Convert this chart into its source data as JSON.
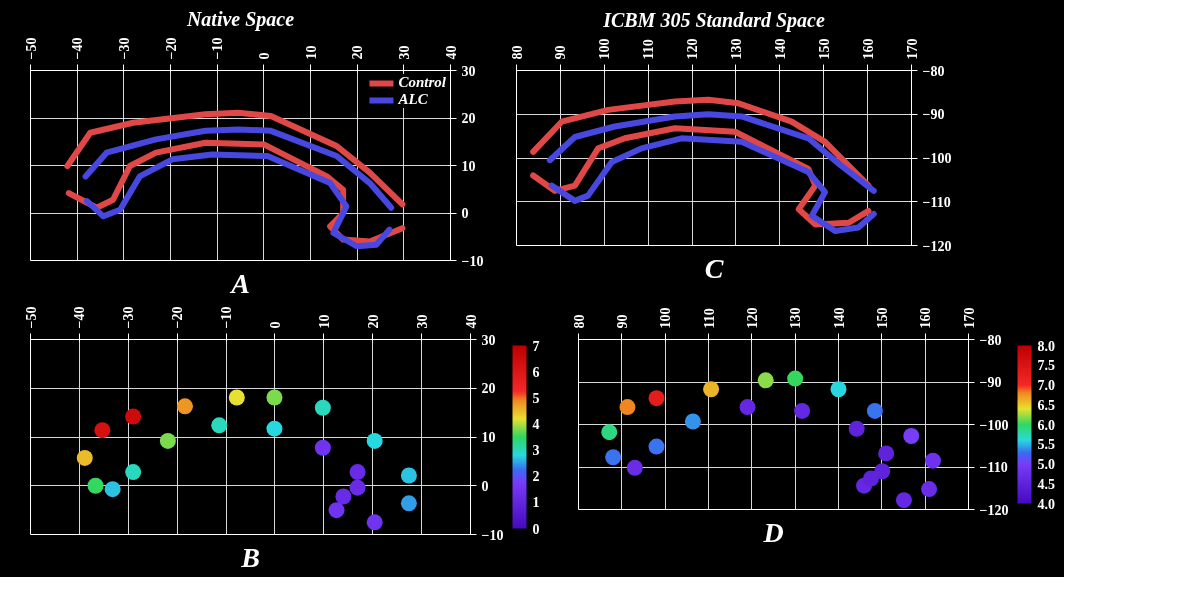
{
  "chart_data": [
    {
      "type": "line",
      "title": "Native Space",
      "annotations": [
        "A"
      ],
      "xlim": [
        -50,
        40
      ],
      "xticks": [
        -50,
        -40,
        -30,
        -20,
        -10,
        0,
        10,
        20,
        30,
        40
      ],
      "ylim": [
        -10,
        30
      ],
      "yticks": [
        -10,
        0,
        10,
        20,
        30
      ],
      "grid": true,
      "legend": "top right",
      "series": [
        {
          "name": "Control",
          "color": "#e04848",
          "x": [
            -42.1,
            -37.2,
            -28,
            -12.5,
            -5.5,
            1.5,
            15.6,
            22.7,
            29.7,
            null,
            -41.8,
            -35.8,
            -32.3,
            -28.7,
            -23.1,
            -12.5,
            0.1,
            13.5,
            17,
            17,
            14.2,
            17,
            22.7,
            29.7
          ],
          "values": [
            9.9,
            16.9,
            19,
            20.8,
            21.1,
            20.4,
            14.1,
            8.5,
            1.8,
            null,
            4.2,
            1.1,
            2.8,
            9.9,
            12.7,
            14.8,
            14.4,
            7.7,
            4.9,
            0,
            -2.8,
            -5.6,
            -6,
            -3.2
          ]
        },
        {
          "name": "ALC",
          "color": "#4848e0",
          "x": [
            -38.2,
            -33.7,
            -23.1,
            -12.5,
            -5.5,
            1.5,
            15.6,
            22.7,
            27.3,
            null,
            -37.9,
            -34.4,
            -30.8,
            -26.6,
            -19.6,
            -11.1,
            0.8,
            14.2,
            17.7,
            14.9,
            19.9,
            24.1,
            26.9
          ],
          "values": [
            7.7,
            12.7,
            15.5,
            17.3,
            17.6,
            17.3,
            12,
            6.3,
            1.1,
            null,
            2.5,
            -0.7,
            0.7,
            7.7,
            11.3,
            12.3,
            12,
            6.3,
            1.4,
            -4.2,
            -7,
            -6.7,
            -3.5
          ]
        }
      ]
    },
    {
      "type": "line",
      "title": "ICBM 305 Standard Space",
      "annotations": [
        "C"
      ],
      "xlim": [
        80,
        170
      ],
      "xticks": [
        80,
        90,
        100,
        110,
        120,
        130,
        140,
        150,
        160,
        170
      ],
      "ylim": [
        -120,
        -80
      ],
      "yticks": [
        -120,
        -110,
        -100,
        -90,
        -80
      ],
      "grid": true,
      "series": [
        {
          "color": "#e04848",
          "x": [
            83.8,
            90.3,
            100.9,
            116.1,
            123.7,
            130.6,
            142.7,
            150.3,
            160.2,
            null,
            83.8,
            88.7,
            93.3,
            98.6,
            104.7,
            116.1,
            129.8,
            146.5,
            148.1,
            144.3,
            148.1,
            155.7,
            160.2
          ],
          "values": [
            -98.6,
            -91.7,
            -89,
            -87.1,
            -86.7,
            -87.5,
            -91.7,
            -96.3,
            -106.3,
            null,
            -104,
            -107.5,
            -106.3,
            -97.8,
            -95.5,
            -93.2,
            -94,
            -102.5,
            -106.3,
            -111.7,
            -115.2,
            -114.8,
            -112.1
          ]
        },
        {
          "color": "#4848e0",
          "x": [
            87.6,
            93.3,
            102.4,
            116.1,
            123.7,
            131.3,
            146.5,
            153.9,
            161.4,
            null,
            88,
            93.3,
            96.3,
            101.7,
            108.5,
            117.6,
            131.3,
            146.5,
            150.3,
            147.3,
            152.6,
            157.9,
            161.4
          ],
          "values": [
            -100.5,
            -95.2,
            -92.8,
            -90.5,
            -90,
            -90.5,
            -95.5,
            -101.7,
            -107.5,
            null,
            -106.3,
            -109.8,
            -108.6,
            -100.9,
            -97.8,
            -95.5,
            -96.3,
            -103.2,
            -107.8,
            -113.2,
            -116.7,
            -115.9,
            -112.8
          ]
        }
      ]
    },
    {
      "type": "scatter",
      "marker": "circle",
      "annotations": [
        "B"
      ],
      "xlim": [
        -50,
        40
      ],
      "xticks": [
        -50,
        -40,
        -30,
        -20,
        -10,
        0,
        10,
        20,
        30,
        40
      ],
      "ylim": [
        -10,
        30
      ],
      "yticks": [
        -10,
        0,
        10,
        20,
        30
      ],
      "grid": true,
      "clim": [
        0,
        7
      ],
      "cticks": [
        0,
        1,
        2,
        3,
        4,
        5,
        6,
        7
      ],
      "x": [
        12.6,
        20.4,
        27.4,
        27.4,
        20.4,
        9.8,
        -0.1,
        -7.8,
        -18.4,
        -29,
        -35.3,
        -38.9,
        -36.7,
        -33.2,
        -29,
        -21.9,
        -11.4,
        -0.1,
        9.8,
        16.9,
        16.9,
        14
      ],
      "values": [
        -5,
        -7.5,
        -3.6,
        2.1,
        9.2,
        16,
        18.1,
        18.1,
        16.3,
        14.2,
        11.4,
        5.7,
        0,
        -0.7,
        2.8,
        9.2,
        12.4,
        11.7,
        7.8,
        2.8,
        -0.4,
        -2.2
      ],
      "cvalues": [
        1.5,
        1.5,
        2.5,
        2.7,
        2.8,
        3,
        3.8,
        4.2,
        4.8,
        6.5,
        6.3,
        4.5,
        3.5,
        2.7,
        3,
        3.8,
        3,
        2.8,
        1.5,
        1.2,
        1.2,
        1.2
      ]
    },
    {
      "type": "scatter",
      "marker": "circle",
      "annotations": [
        "D"
      ],
      "xlim": [
        80,
        170
      ],
      "xticks": [
        80,
        90,
        100,
        110,
        120,
        130,
        140,
        150,
        160,
        170
      ],
      "ylim": [
        -120,
        -80
      ],
      "yticks": [
        -120,
        -110,
        -100,
        -90,
        -80
      ],
      "grid": true,
      "clim": [
        4,
        8
      ],
      "cticks": [
        {
          "value": 4,
          "label": "4.0"
        },
        4.5,
        {
          "value": 5,
          "label": "5.0"
        },
        5.5,
        {
          "value": 6,
          "label": "6.0"
        },
        6.5,
        {
          "value": 7,
          "label": "7.0"
        },
        7.5,
        {
          "value": 8,
          "label": "8.0"
        }
      ],
      "x": [
        145.9,
        155.1,
        160.9,
        161.8,
        156.8,
        148.4,
        140,
        130,
        123.2,
        110.6,
        98,
        91.3,
        87.1,
        88,
        93,
        98,
        106.4,
        119,
        131.6,
        144.2,
        151,
        150.1,
        147.5
      ],
      "values": [
        -114.4,
        -117.8,
        -115.2,
        -108.5,
        -102.7,
        -96.8,
        -91.7,
        -89.2,
        -89.6,
        -91.7,
        -93.8,
        -95.9,
        -101.8,
        -107.7,
        -110.2,
        -105.2,
        -99.3,
        -95.9,
        -96.8,
        -101,
        -106.8,
        -111,
        -112.7
      ],
      "cvalues": [
        4.6,
        4.6,
        4.7,
        4.8,
        5,
        5.3,
        5.6,
        6,
        6.2,
        6.6,
        7.3,
        6.8,
        5.9,
        5.3,
        4.7,
        5.3,
        5.4,
        4.6,
        4.6,
        4.5,
        4.5,
        4.5,
        4.5
      ]
    }
  ]
}
